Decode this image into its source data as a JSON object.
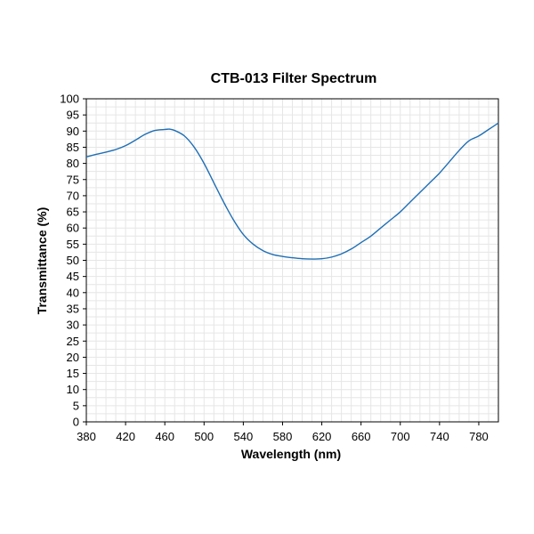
{
  "chart_data": {
    "type": "line",
    "title": "CTB-013 Filter Spectrum",
    "xlabel": "Wavelength (nm)",
    "ylabel": "Transmittance (%)",
    "xlim": [
      380,
      800
    ],
    "ylim": [
      0,
      100
    ],
    "x_ticks": [
      380,
      420,
      460,
      500,
      540,
      580,
      620,
      660,
      700,
      740,
      780
    ],
    "y_ticks": [
      0,
      5,
      10,
      15,
      20,
      25,
      30,
      35,
      40,
      45,
      50,
      55,
      60,
      65,
      70,
      75,
      80,
      85,
      90,
      95,
      100
    ],
    "grid": true,
    "line_color": "#1f6fb5",
    "series": [
      {
        "x": [
          380,
          390,
          400,
          410,
          420,
          430,
          440,
          450,
          460,
          465,
          470,
          480,
          490,
          500,
          510,
          520,
          530,
          540,
          550,
          560,
          570,
          580,
          590,
          600,
          610,
          620,
          630,
          640,
          650,
          660,
          670,
          680,
          690,
          700,
          710,
          720,
          730,
          740,
          750,
          760,
          770,
          780,
          790,
          800
        ],
        "y": [
          82,
          82.8,
          83.5,
          84.3,
          85.5,
          87.2,
          89.0,
          90.2,
          90.5,
          90.6,
          90.2,
          88.5,
          85.0,
          80.0,
          74.0,
          68.0,
          62.5,
          58.0,
          55.0,
          53.0,
          51.8,
          51.2,
          50.8,
          50.5,
          50.4,
          50.5,
          51.0,
          52.0,
          53.5,
          55.5,
          57.5,
          60.0,
          62.5,
          65.0,
          68.0,
          71.0,
          74.0,
          77.0,
          80.5,
          84.0,
          87.0,
          88.5,
          90.5,
          92.5
        ]
      }
    ]
  }
}
